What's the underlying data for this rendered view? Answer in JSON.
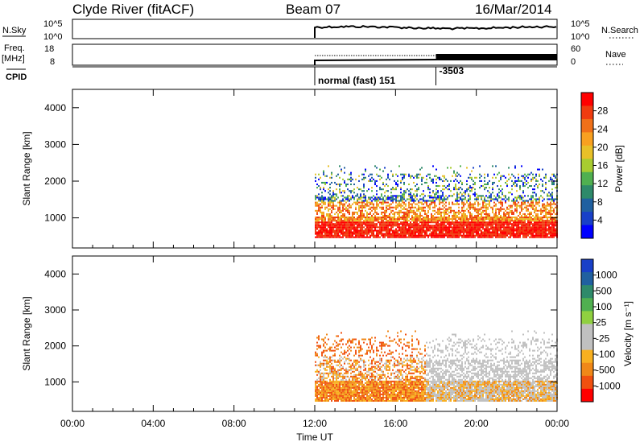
{
  "header": {
    "station": "Clyde River (fitACF)",
    "beam": "Beam 07",
    "date": "16/Mar/2014"
  },
  "top_strips": {
    "nsky_label": "N.Sky",
    "nsky_ticks": [
      "10^5",
      "10^0"
    ],
    "nsearch_label": "N.Search",
    "nsearch_ticks": [
      "10^5",
      "10^0"
    ],
    "freq_label_1": "Freq.",
    "freq_label_2": "[MHz]",
    "freq_ticks": [
      "18",
      "8"
    ],
    "nave_label": "Nave",
    "nave_ticks": [
      "60",
      "0"
    ],
    "cpid_label": "CPID",
    "cpid_annotations": [
      {
        "text": "normal (fast) 151",
        "hour": 12.0
      },
      {
        "text": "-3503",
        "hour": 18.0
      }
    ]
  },
  "chart_data": [
    {
      "type": "heatmap",
      "title": "",
      "xlabel": "Time UT",
      "ylabel": "Slant Range [km]",
      "xlim": [
        0,
        24
      ],
      "x_ticks": [
        "00:00",
        "04:00",
        "08:00",
        "12:00",
        "16:00",
        "20:00",
        "00:00"
      ],
      "ylim": [
        180,
        4500
      ],
      "y_ticks": [
        1000,
        2000,
        3000,
        4000
      ],
      "colorbar": {
        "label": "Power [dB]",
        "ticks": [
          "28",
          "24",
          "20",
          "16",
          "12",
          "8",
          "4"
        ],
        "colors": [
          "#ff0000",
          "#f03c10",
          "#f07018",
          "#f8a020",
          "#e8c028",
          "#a8cc30",
          "#50b050",
          "#2e8a6a",
          "#2060a0",
          "#1840c8",
          "#0000ff"
        ]
      },
      "data_start_hour": 12.0
    },
    {
      "type": "heatmap",
      "title": "",
      "xlabel": "Time UT",
      "ylabel": "Slant Range [km]",
      "xlim": [
        0,
        24
      ],
      "x_ticks": [
        "00:00",
        "04:00",
        "08:00",
        "12:00",
        "16:00",
        "20:00",
        "00:00"
      ],
      "ylim": [
        180,
        4500
      ],
      "y_ticks": [
        1000,
        2000,
        3000,
        4000
      ],
      "colorbar": {
        "label": "Velocity [m s⁻¹]",
        "ticks": [
          "1000",
          "500",
          "100",
          "25",
          "-25",
          "-100",
          "-500",
          "-1000"
        ],
        "colors": [
          "#1840c8",
          "#2060a0",
          "#2e8a6a",
          "#50b050",
          "#90d040",
          "#c0c0c0",
          "#c0c0c0",
          "#f8b020",
          "#f08818",
          "#f05010",
          "#ff0000"
        ]
      },
      "data_start_hour": 12.0
    }
  ]
}
